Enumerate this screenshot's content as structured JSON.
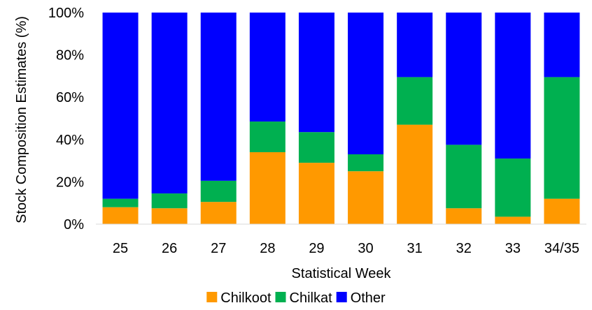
{
  "chart_data": {
    "type": "bar",
    "stacked": true,
    "categories": [
      "25",
      "26",
      "27",
      "28",
      "29",
      "30",
      "31",
      "32",
      "33",
      "34/35"
    ],
    "series": [
      {
        "name": "Chilkoot",
        "color": "#FF9900",
        "values": [
          8,
          7.5,
          10.5,
          34,
          29,
          25,
          47,
          7.5,
          3.5,
          12
        ]
      },
      {
        "name": "Chilkat",
        "color": "#00B050",
        "values": [
          4,
          7,
          10,
          14.5,
          14.5,
          8,
          22.5,
          30,
          27.5,
          57.5
        ]
      },
      {
        "name": "Other",
        "color": "#0000FF",
        "values": [
          88,
          85.5,
          79.5,
          51.5,
          56.5,
          67,
          30.5,
          62.5,
          69,
          30.5
        ]
      }
    ],
    "title": "",
    "xlabel": "Statistical Week",
    "ylabel": "Stock Composition Estimates (%)",
    "ylim": [
      0,
      100
    ],
    "yticks": [
      "0%",
      "20%",
      "40%",
      "60%",
      "80%",
      "100%"
    ],
    "ytick_values": [
      0,
      20,
      40,
      60,
      80,
      100
    ],
    "grid": false,
    "legend_position": "bottom"
  }
}
